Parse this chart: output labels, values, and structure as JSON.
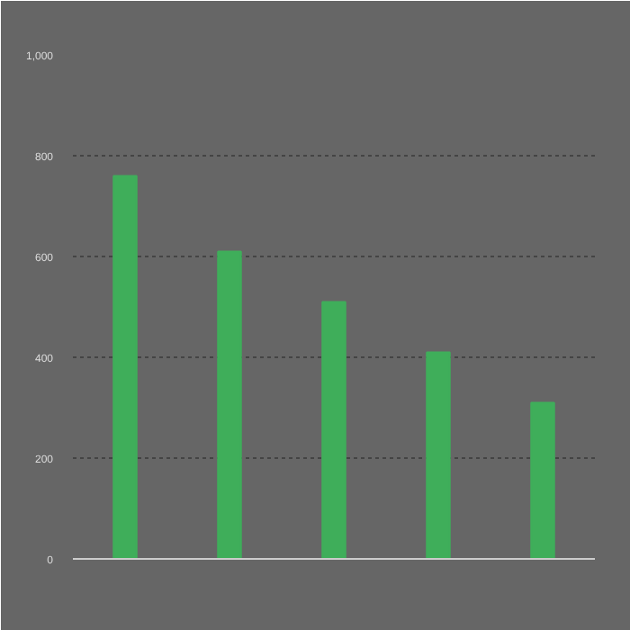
{
  "chart_data": {
    "type": "bar",
    "categories": [
      null,
      null,
      null,
      null,
      null
    ],
    "values": [
      760,
      610,
      510,
      410,
      310
    ],
    "color": "#3fae5a",
    "ylim": [
      0,
      1000
    ],
    "yticks": [
      0,
      200,
      400,
      600,
      800,
      {
        "value": 1000,
        "label": "1,000"
      }
    ],
    "grid": "y"
  }
}
